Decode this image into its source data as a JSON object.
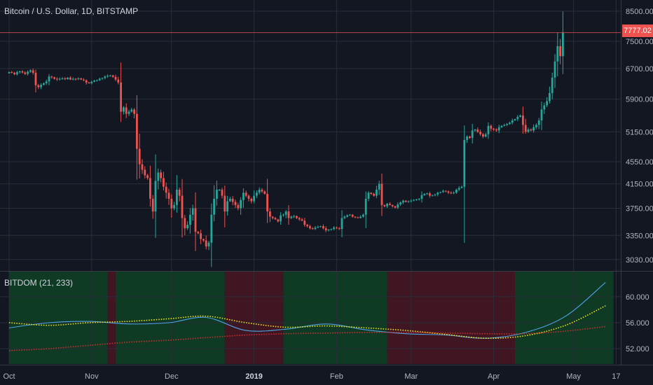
{
  "header": {
    "title": "Bitcoin / U.S. Dollar, 1D, BITSTAMP",
    "indicator_title": "BITDOM (21, 233)",
    "last_price": "7777.02"
  },
  "colors": {
    "background": "#131722",
    "grid": "#2a2e39",
    "up": "#26a69a",
    "down": "#ef5350",
    "price_line": "#ef5350",
    "indicator_line": "#4ea3e6",
    "ma_fast": "#f5e616",
    "ma_slow": "#d32f2f",
    "band_green": "#0f3a24",
    "band_red": "#3f1622"
  },
  "chart_data": [
    {
      "type": "candlestick",
      "title": "Bitcoin / U.S. Dollar, 1D, BITSTAMP",
      "y_scale": "log",
      "ylim": [
        2950,
        8700
      ],
      "y_ticks": [
        3030,
        3350,
        3750,
        4150,
        4550,
        5150,
        5900,
        6700,
        7500,
        8500
      ],
      "y_tick_labels": [
        "3030.00",
        "3350.00",
        "3750.00",
        "4150.00",
        "4550.00",
        "5150.00",
        "5900.00",
        "6700.00",
        "7500.00",
        "8500.00"
      ],
      "x_tick_labels": [
        "Oct",
        "Nov",
        "Dec",
        "2019",
        "Feb",
        "Mar",
        "Apr",
        "May",
        "17"
      ],
      "x_tick_dates": [
        "2018-10-01",
        "2018-11-01",
        "2018-12-01",
        "2019-01-01",
        "2019-02-01",
        "2019-03-01",
        "2019-04-01",
        "2019-05-01",
        "2019-05-17"
      ],
      "last_price": 7777.02,
      "close_series": {
        "start_date": "2018-10-01",
        "end_date": "2019-05-14",
        "closes": [
          6600,
          6580,
          6540,
          6600,
          6620,
          6590,
          6550,
          6610,
          6650,
          6580,
          6250,
          6200,
          6260,
          6300,
          6350,
          6480,
          6460,
          6420,
          6400,
          6420,
          6430,
          6410,
          6450,
          6400,
          6420,
          6410,
          6430,
          6400,
          6380,
          6320,
          6300,
          6340,
          6370,
          6380,
          6420,
          6440,
          6480,
          6500,
          6510,
          6470,
          6400,
          6320,
          5600,
          5700,
          5550,
          5600,
          5650,
          5550,
          4800,
          4500,
          4400,
          4300,
          4250,
          3900,
          3700,
          4200,
          4350,
          4250,
          4100,
          4000,
          3900,
          3750,
          3800,
          4050,
          3950,
          3600,
          3450,
          3500,
          3650,
          3750,
          3400,
          3380,
          3300,
          3280,
          3200,
          3250,
          3650,
          3900,
          4050,
          4050,
          3950,
          3700,
          3860,
          3900,
          3850,
          3800,
          3750,
          3880,
          4000,
          3950,
          3900,
          3860,
          3950,
          4000,
          4050,
          4020,
          3980,
          3700,
          3620,
          3600,
          3580,
          3550,
          3640,
          3650,
          3700,
          3600,
          3620,
          3630,
          3600,
          3580,
          3560,
          3500,
          3480,
          3450,
          3440,
          3460,
          3470,
          3480,
          3450,
          3420,
          3430,
          3440,
          3460,
          3450,
          3440,
          3600,
          3620,
          3640,
          3650,
          3620,
          3610,
          3600,
          3620,
          3650,
          3900,
          4000,
          3980,
          3950,
          4050,
          4150,
          3800,
          3780,
          3820,
          3800,
          3780,
          3760,
          3810,
          3840,
          3870,
          3850,
          3860,
          3870,
          3880,
          3890,
          3900,
          3960,
          3980,
          3990,
          3950,
          3960,
          3970,
          4000,
          4010,
          4030,
          4020,
          4000,
          3990,
          4000,
          4050,
          4080,
          4100,
          4980,
          5050,
          5020,
          5180,
          5200,
          5150,
          5100,
          5050,
          5100,
          5280,
          5220,
          5200,
          5180,
          5250,
          5280,
          5300,
          5320,
          5350,
          5400,
          5430,
          5480,
          5510,
          5300,
          5150,
          5200,
          5180,
          5250,
          5300,
          5400,
          5650,
          5750,
          5850,
          6050,
          6450,
          6900,
          7350,
          7050,
          7777
        ]
      }
    },
    {
      "type": "line",
      "title": "BITDOM (21, 233)",
      "ylim": [
        50.5,
        63
      ],
      "y_ticks": [
        52,
        56,
        60
      ],
      "y_tick_labels": [
        "52.000",
        "56.000",
        "60.000"
      ],
      "x_tick_labels": [
        "Oct",
        "Nov",
        "Dec",
        "2019",
        "Feb",
        "Mar",
        "Apr",
        "May",
        "17"
      ],
      "x_tick_dates": [
        "2018-10-01",
        "2018-11-01",
        "2018-12-01",
        "2019-01-01",
        "2019-02-01",
        "2019-03-01",
        "2019-04-01",
        "2019-05-01",
        "2019-05-17"
      ],
      "x_keys": [
        "2018-10-01",
        "2018-10-16",
        "2018-10-31",
        "2018-11-15",
        "2018-11-30",
        "2018-12-14",
        "2018-12-29",
        "2019-01-13",
        "2019-01-28",
        "2019-02-12",
        "2019-02-27",
        "2019-03-14",
        "2019-03-29",
        "2019-04-13",
        "2019-04-28",
        "2019-05-13"
      ],
      "background_bands": [
        {
          "from": "2018-10-01",
          "to": "2018-11-07",
          "color": "green"
        },
        {
          "from": "2018-11-07",
          "to": "2018-11-10",
          "color": "red"
        },
        {
          "from": "2018-11-10",
          "to": "2018-12-21",
          "color": "green"
        },
        {
          "from": "2018-12-21",
          "to": "2019-01-12",
          "color": "red"
        },
        {
          "from": "2019-01-12",
          "to": "2019-02-20",
          "color": "green"
        },
        {
          "from": "2019-02-20",
          "to": "2019-04-09",
          "color": "red"
        },
        {
          "from": "2019-04-09",
          "to": "2019-05-16",
          "color": "green"
        }
      ],
      "series": [
        {
          "values": [
            55.2,
            56.0,
            56.2,
            55.8,
            56.0,
            56.8,
            54.8,
            55.0,
            55.8,
            54.9,
            54.3,
            54.1,
            53.6,
            54.5,
            57.0,
            62.2
          ]
        },
        {
          "values": [
            56.0,
            55.6,
            56.0,
            56.2,
            56.6,
            57.0,
            56.0,
            55.3,
            55.5,
            55.2,
            54.8,
            54.2,
            53.6,
            54.0,
            55.6,
            58.6
          ]
        },
        {
          "values": [
            51.7,
            52.0,
            52.5,
            53.0,
            53.3,
            53.7,
            54.1,
            54.3,
            54.4,
            54.5,
            54.5,
            54.4,
            54.3,
            54.3,
            54.7,
            55.4
          ]
        }
      ]
    }
  ]
}
